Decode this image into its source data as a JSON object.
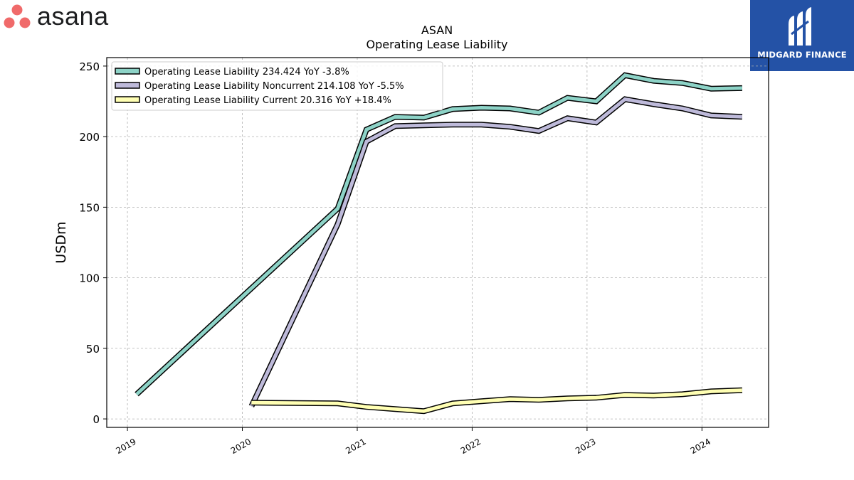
{
  "brand": {
    "company_logo_text": "asana",
    "publisher_text": "MIDGARD FINANCE"
  },
  "colors": {
    "asana_dot": "#f06a6a",
    "publisher_bg": "#2452a6",
    "series_total": "#8dd3c7",
    "series_noncurrent": "#bebada",
    "series_current": "#ffffb3"
  },
  "chart_data": {
    "type": "line",
    "title": "ASAN",
    "subtitle": "Operating Lease Liability",
    "ylabel": "USDm",
    "xlabel": "",
    "ylim": [
      -6,
      256
    ],
    "xlim": [
      2018.82,
      2024.58
    ],
    "yticks": [
      0,
      50,
      100,
      150,
      200,
      250
    ],
    "xticks": [
      2019,
      2020,
      2021,
      2022,
      2023,
      2024
    ],
    "grid": true,
    "legend_position": "top-left",
    "series": [
      {
        "name": "Operating Lease Liability",
        "legend": "Operating Lease Liability  234.424 YoY -3.8%",
        "color": "#8dd3c7",
        "points": [
          [
            2019.08,
            17.5
          ],
          [
            2020.83,
            149.0
          ],
          [
            2021.08,
            205.0
          ],
          [
            2021.33,
            214.0
          ],
          [
            2021.58,
            213.5
          ],
          [
            2021.83,
            219.5
          ],
          [
            2022.08,
            220.5
          ],
          [
            2022.33,
            220.0
          ],
          [
            2022.58,
            217.0
          ],
          [
            2022.83,
            227.5
          ],
          [
            2023.08,
            225.0
          ],
          [
            2023.33,
            243.5
          ],
          [
            2023.58,
            239.5
          ],
          [
            2023.83,
            238.0
          ],
          [
            2024.08,
            234.0
          ],
          [
            2024.35,
            234.4
          ]
        ]
      },
      {
        "name": "Operating Lease Liability Noncurrent",
        "legend": "Operating Lease Liability Noncurrent  214.108 YoY -5.5%",
        "color": "#bebada",
        "points": [
          [
            2020.08,
            9.0
          ],
          [
            2020.83,
            138.0
          ],
          [
            2021.08,
            196.5
          ],
          [
            2021.33,
            207.5
          ],
          [
            2021.58,
            208.0
          ],
          [
            2021.83,
            208.5
          ],
          [
            2022.08,
            208.5
          ],
          [
            2022.33,
            207.0
          ],
          [
            2022.58,
            204.0
          ],
          [
            2022.83,
            213.0
          ],
          [
            2023.08,
            210.0
          ],
          [
            2023.33,
            226.5
          ],
          [
            2023.58,
            223.0
          ],
          [
            2023.83,
            220.0
          ],
          [
            2024.08,
            215.0
          ],
          [
            2024.35,
            214.1
          ]
        ]
      },
      {
        "name": "Operating Lease Liability Current",
        "legend": "Operating Lease Liability Current  20.316 YoY +18.4%",
        "color": "#ffffb3",
        "points": [
          [
            2020.08,
            11.5
          ],
          [
            2020.83,
            11.0
          ],
          [
            2021.08,
            8.5
          ],
          [
            2021.33,
            7.0
          ],
          [
            2021.58,
            5.5
          ],
          [
            2021.83,
            11.0
          ],
          [
            2022.08,
            12.5
          ],
          [
            2022.33,
            14.0
          ],
          [
            2022.58,
            13.5
          ],
          [
            2022.83,
            14.5
          ],
          [
            2023.08,
            15.0
          ],
          [
            2023.33,
            17.0
          ],
          [
            2023.58,
            16.5
          ],
          [
            2023.83,
            17.5
          ],
          [
            2024.08,
            19.5
          ],
          [
            2024.35,
            20.3
          ]
        ]
      }
    ]
  }
}
